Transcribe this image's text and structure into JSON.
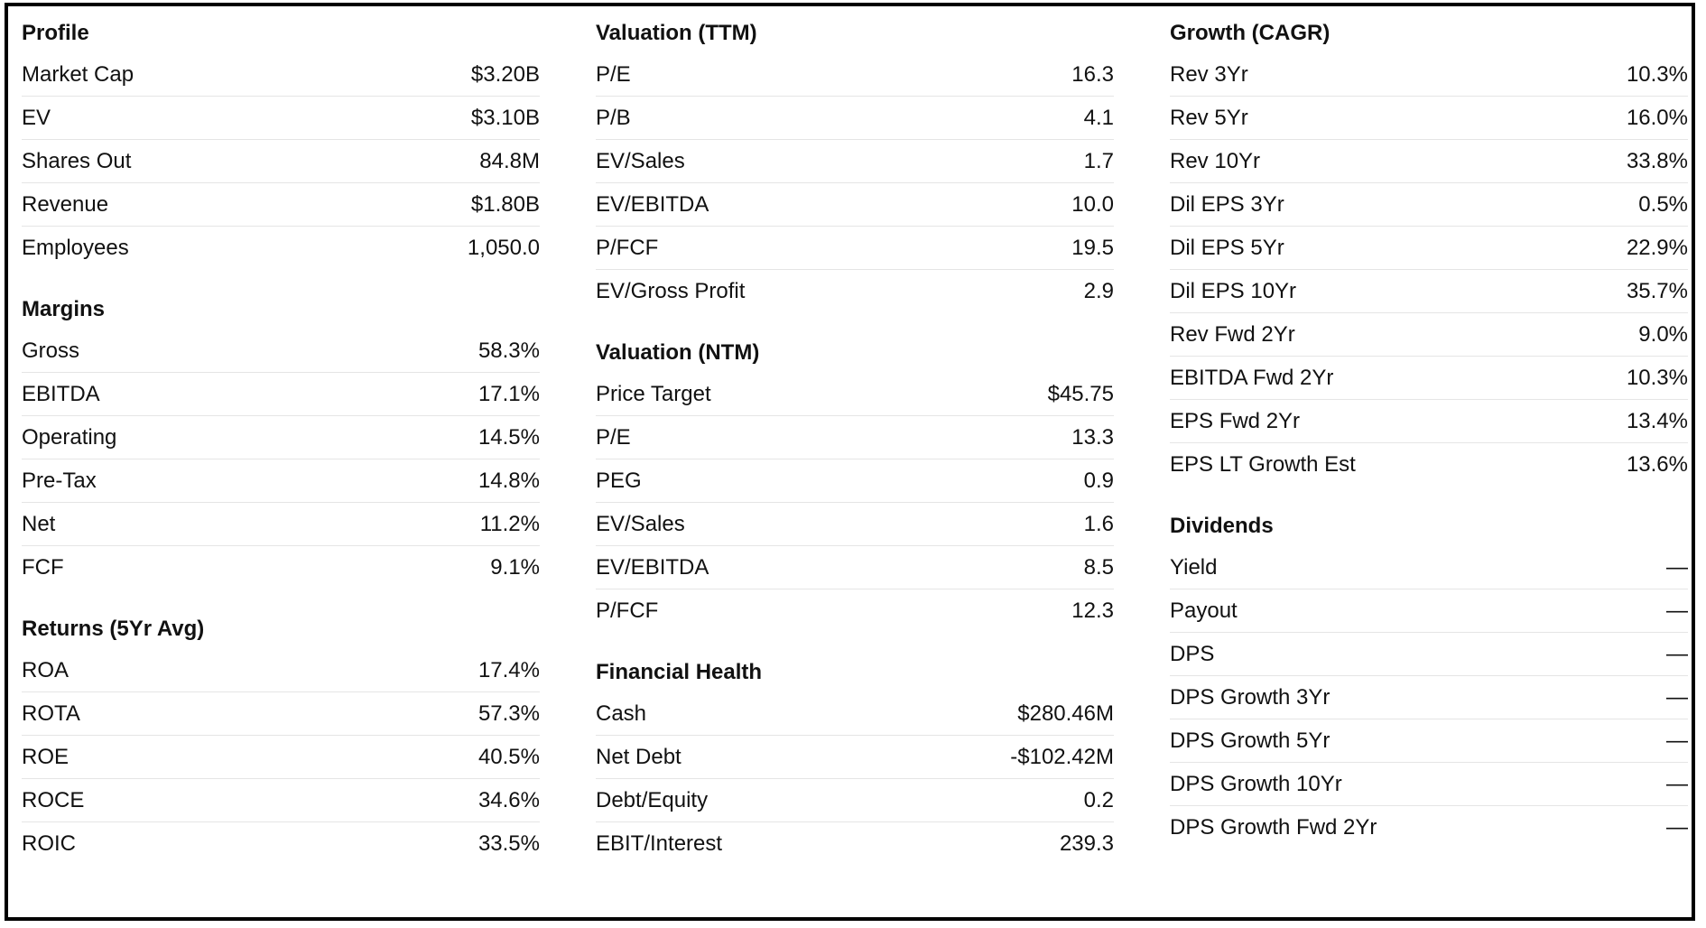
{
  "columns": [
    {
      "sections": [
        {
          "title": "Profile",
          "rows": [
            {
              "label": "Market Cap",
              "value": "$3.20B"
            },
            {
              "label": "EV",
              "value": "$3.10B"
            },
            {
              "label": "Shares Out",
              "value": "84.8M"
            },
            {
              "label": "Revenue",
              "value": "$1.80B"
            },
            {
              "label": "Employees",
              "value": "1,050.0"
            }
          ]
        },
        {
          "title": "Margins",
          "rows": [
            {
              "label": "Gross",
              "value": "58.3%"
            },
            {
              "label": "EBITDA",
              "value": "17.1%"
            },
            {
              "label": "Operating",
              "value": "14.5%"
            },
            {
              "label": "Pre-Tax",
              "value": "14.8%"
            },
            {
              "label": "Net",
              "value": "11.2%"
            },
            {
              "label": "FCF",
              "value": "9.1%"
            }
          ]
        },
        {
          "title": "Returns (5Yr Avg)",
          "rows": [
            {
              "label": "ROA",
              "value": "17.4%"
            },
            {
              "label": "ROTA",
              "value": "57.3%"
            },
            {
              "label": "ROE",
              "value": "40.5%"
            },
            {
              "label": "ROCE",
              "value": "34.6%"
            },
            {
              "label": "ROIC",
              "value": "33.5%"
            }
          ]
        }
      ]
    },
    {
      "sections": [
        {
          "title": "Valuation (TTM)",
          "rows": [
            {
              "label": "P/E",
              "value": "16.3"
            },
            {
              "label": "P/B",
              "value": "4.1"
            },
            {
              "label": "EV/Sales",
              "value": "1.7"
            },
            {
              "label": "EV/EBITDA",
              "value": "10.0"
            },
            {
              "label": "P/FCF",
              "value": "19.5"
            },
            {
              "label": "EV/Gross Profit",
              "value": "2.9"
            }
          ]
        },
        {
          "title": "Valuation (NTM)",
          "rows": [
            {
              "label": "Price Target",
              "value": "$45.75"
            },
            {
              "label": "P/E",
              "value": "13.3"
            },
            {
              "label": "PEG",
              "value": "0.9"
            },
            {
              "label": "EV/Sales",
              "value": "1.6"
            },
            {
              "label": "EV/EBITDA",
              "value": "8.5"
            },
            {
              "label": "P/FCF",
              "value": "12.3"
            }
          ]
        },
        {
          "title": "Financial Health",
          "rows": [
            {
              "label": "Cash",
              "value": "$280.46M"
            },
            {
              "label": "Net Debt",
              "value": "-$102.42M"
            },
            {
              "label": "Debt/Equity",
              "value": "0.2"
            },
            {
              "label": "EBIT/Interest",
              "value": "239.3"
            }
          ]
        }
      ]
    },
    {
      "sections": [
        {
          "title": "Growth (CAGR)",
          "rows": [
            {
              "label": "Rev 3Yr",
              "value": "10.3%"
            },
            {
              "label": "Rev 5Yr",
              "value": "16.0%"
            },
            {
              "label": "Rev 10Yr",
              "value": "33.8%"
            },
            {
              "label": "Dil EPS 3Yr",
              "value": "0.5%"
            },
            {
              "label": "Dil EPS 5Yr",
              "value": "22.9%"
            },
            {
              "label": "Dil EPS 10Yr",
              "value": "35.7%"
            },
            {
              "label": "Rev Fwd 2Yr",
              "value": "9.0%"
            },
            {
              "label": "EBITDA Fwd 2Yr",
              "value": "10.3%"
            },
            {
              "label": "EPS Fwd 2Yr",
              "value": "13.4%"
            },
            {
              "label": "EPS LT Growth Est",
              "value": "13.6%"
            }
          ]
        },
        {
          "title": "Dividends",
          "rows": [
            {
              "label": "Yield",
              "value": "—"
            },
            {
              "label": "Payout",
              "value": "—"
            },
            {
              "label": "DPS",
              "value": "—"
            },
            {
              "label": "DPS Growth 3Yr",
              "value": "—"
            },
            {
              "label": "DPS Growth 5Yr",
              "value": "—"
            },
            {
              "label": "DPS Growth 10Yr",
              "value": "—"
            },
            {
              "label": "DPS Growth Fwd 2Yr",
              "value": "—"
            }
          ]
        }
      ]
    }
  ]
}
